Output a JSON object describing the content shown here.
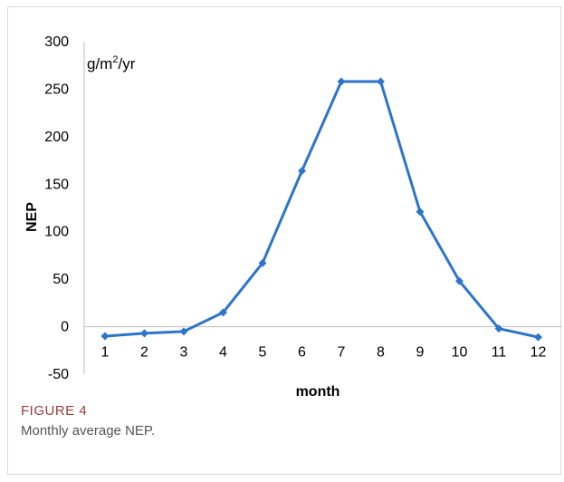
{
  "figure": {
    "label": "FIGURE 4",
    "caption": "Monthly average NEP."
  },
  "chart_data": {
    "type": "line",
    "title": "",
    "xlabel": "month",
    "ylabel": "NEP",
    "unit_label": {
      "base": "g/m",
      "sup": "2",
      "rest": "/yr"
    },
    "x": [
      "1",
      "2",
      "3",
      "4",
      "5",
      "6",
      "7",
      "8",
      "9",
      "10",
      "11",
      "12"
    ],
    "series": [
      {
        "values": [
          -10,
          -7,
          -5,
          15,
          67,
          164,
          258,
          258,
          121,
          48,
          -2,
          -11
        ]
      }
    ],
    "ylim": [
      -50,
      300
    ],
    "yticks": [
      "-50",
      "0",
      "50",
      "100",
      "150",
      "200",
      "250",
      "300"
    ],
    "grid": false,
    "legend": "none",
    "color": "#2e75c9"
  }
}
